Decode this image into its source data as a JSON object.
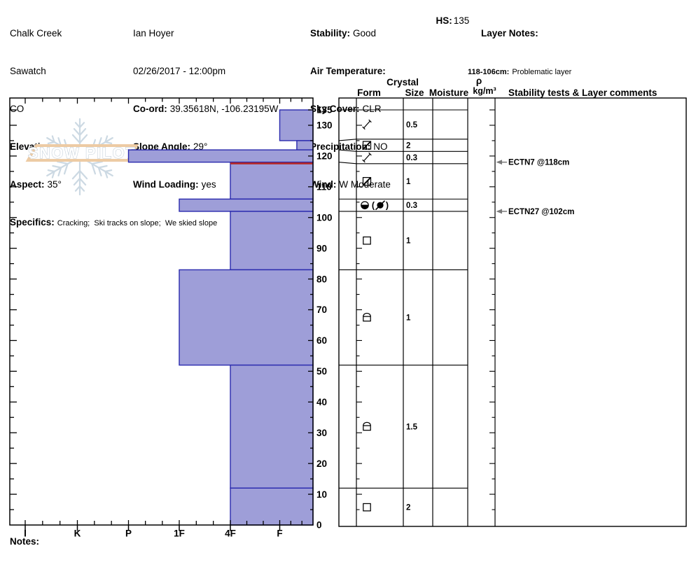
{
  "header": {
    "col1": {
      "location": "Chalk Creek",
      "range": "Sawatch",
      "state": "CO",
      "elevation_label": "Elevation:",
      "elevation_value": "",
      "aspect_label": "Aspect:",
      "aspect_value": "35°",
      "specifics_label": "Specifics:",
      "specifics_value": "Cracking;  Ski tracks on slope;  We skied slope"
    },
    "col2": {
      "observer": "Ian Hoyer",
      "datetime": "02/26/2017 - 12:00pm",
      "coord_label": "Co-ord:",
      "coord_value": "39.35618N, -106.23195W",
      "slope_angle_label": "Slope Angle:",
      "slope_angle_value": "29°",
      "wind_loading_label": "Wind Loading:",
      "wind_loading_value": "yes"
    },
    "col3": {
      "stability_label": "Stability:",
      "stability_value": "Good",
      "air_temp_label": "Air Temperature:",
      "air_temp_value": "",
      "sky_label": "Sky Cover:",
      "sky_value": "CLR",
      "precip_label": "Precipitation:",
      "precip_value": "NO",
      "wind_label": "Wind:",
      "wind_value": "W Moderate"
    },
    "hs_label": "HS:",
    "hs_value": "135",
    "layer_notes_label": "Layer Notes:",
    "layer_note_range": "118-106cm:",
    "layer_note_text": "Problematic layer"
  },
  "logo": {
    "text": "SNOW PILOT"
  },
  "table": {
    "headers": {
      "crystal": "Crystal",
      "form": "Form",
      "size": "Size",
      "moisture": "Moisture",
      "rho": "ρ",
      "rho_units": "kg/m³",
      "comments": "Stability tests & Layer comments"
    }
  },
  "notes_label": "Notes:",
  "chart_data": {
    "type": "bar",
    "subtype": "snow-hardness-profile",
    "hardness_axis": {
      "categories": [
        "I",
        "K",
        "P",
        "1F",
        "4F",
        "F"
      ],
      "position": "bottom"
    },
    "depth_axis": {
      "unit": "cm",
      "total_depth": 135,
      "labels": [
        135,
        130,
        120,
        110,
        100,
        90,
        80,
        70,
        60,
        50,
        40,
        30,
        20,
        10,
        0
      ]
    },
    "layers": [
      {
        "top_cm": 135,
        "bottom_cm": 125,
        "hardness": "F",
        "grain_glyph": "slash",
        "grain_size_mm": "0.5"
      },
      {
        "top_cm": 125,
        "bottom_cm": 122,
        "hardness": "F-",
        "grain_glyph": "square-slash",
        "grain_size_mm": "2"
      },
      {
        "top_cm": 122,
        "bottom_cm": 118,
        "hardness": "P",
        "grain_glyph": "slash",
        "grain_size_mm": "0.3"
      },
      {
        "top_cm": 118,
        "bottom_cm": 106,
        "hardness": "4F",
        "grain_glyph": "square-slash",
        "grain_size_mm": "1",
        "flagged_top": true
      },
      {
        "top_cm": 106,
        "bottom_cm": 102,
        "hardness": "1F",
        "grain_glyph": "crust-paren",
        "grain_size_mm": "0.3"
      },
      {
        "top_cm": 102,
        "bottom_cm": 83,
        "hardness": "4F",
        "grain_glyph": "square",
        "grain_size_mm": "1"
      },
      {
        "top_cm": 83,
        "bottom_cm": 52,
        "hardness": "1F",
        "grain_glyph": "dome-square",
        "grain_size_mm": "1"
      },
      {
        "top_cm": 52,
        "bottom_cm": 12,
        "hardness": "4F",
        "grain_glyph": "dome-square",
        "grain_size_mm": "1.5"
      },
      {
        "top_cm": 12,
        "bottom_cm": 0,
        "hardness": "4F",
        "grain_glyph": "square",
        "grain_size_mm": "2"
      }
    ],
    "stability_tests": [
      {
        "label": "ECTN7 @118cm",
        "depth_cm": 118
      },
      {
        "label": "ECTN27 @102cm",
        "depth_cm": 102
      }
    ],
    "colors": {
      "bar_fill": "#9e9ed8",
      "bar_border": "#2a2aae",
      "flag_line": "#b32424",
      "arrow": "#7a7a7a",
      "logo_flake": "#ccd9e3",
      "logo_band": "#edcba4",
      "logo_text_stroke": "#bcc9d4"
    }
  }
}
